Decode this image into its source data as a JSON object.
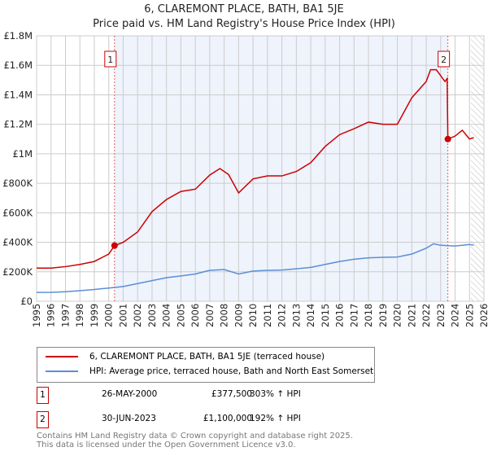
{
  "chart_data": {
    "type": "line",
    "title": "6, CLAREMONT PLACE, BATH, BA1 5JE",
    "subtitle": "Price paid vs. HM Land Registry's House Price Index (HPI)",
    "xlim": [
      1995,
      2026
    ],
    "ylim": [
      0,
      1800000
    ],
    "x_ticks": [
      "1995",
      "1996",
      "1997",
      "1998",
      "1999",
      "2000",
      "2001",
      "2002",
      "2003",
      "2004",
      "2005",
      "2006",
      "2007",
      "2008",
      "2009",
      "2010",
      "2011",
      "2012",
      "2013",
      "2014",
      "2015",
      "2016",
      "2017",
      "2018",
      "2019",
      "2020",
      "2021",
      "2022",
      "2023",
      "2024",
      "2025",
      "2026"
    ],
    "y_ticks": [
      {
        "v": 0,
        "l": "£0"
      },
      {
        "v": 200000,
        "l": "£200K"
      },
      {
        "v": 400000,
        "l": "£400K"
      },
      {
        "v": 600000,
        "l": "£600K"
      },
      {
        "v": 800000,
        "l": "£800K"
      },
      {
        "v": 1000000,
        "l": "£1M"
      },
      {
        "v": 1200000,
        "l": "£1.2M"
      },
      {
        "v": 1400000,
        "l": "£1.4M"
      },
      {
        "v": 1600000,
        "l": "£1.6M"
      },
      {
        "v": 1800000,
        "l": "£1.8M"
      }
    ],
    "grid": true,
    "series": [
      {
        "name": "6, CLAREMONT PLACE, BATH, BA1 5JE (terraced house)",
        "color": "#cc0000",
        "x": [
          1995,
          1996,
          1997,
          1998,
          1999,
          2000,
          2000.4,
          2001,
          2002,
          2003,
          2004,
          2005,
          2006,
          2007,
          2007.7,
          2008.3,
          2009,
          2010,
          2011,
          2012,
          2013,
          2014,
          2015,
          2016,
          2017,
          2018,
          2019,
          2020,
          2021,
          2022,
          2022.3,
          2022.7,
          2023.3,
          2023.45,
          2023.5,
          2024,
          2024.5,
          2025,
          2025.3
        ],
        "y": [
          225000,
          225000,
          235000,
          250000,
          270000,
          320000,
          377500,
          400000,
          470000,
          608000,
          690000,
          745000,
          760000,
          856000,
          900000,
          860000,
          735000,
          830000,
          850000,
          850000,
          880000,
          940000,
          1050000,
          1130000,
          1170000,
          1215000,
          1200000,
          1200000,
          1380000,
          1490000,
          1570000,
          1570000,
          1490000,
          1510000,
          1100000,
          1120000,
          1160000,
          1100000,
          1110000
        ]
      },
      {
        "name": "HPI: Average price, terraced house, Bath and North East Somerset",
        "color": "#5b8fd4",
        "x": [
          1995,
          1996,
          1997,
          1998,
          1999,
          2000,
          2000.4,
          2001,
          2002,
          2003,
          2004,
          2005,
          2006,
          2007,
          2008,
          2009,
          2010,
          2011,
          2012,
          2013,
          2014,
          2015,
          2016,
          2017,
          2018,
          2019,
          2020,
          2021,
          2022,
          2022.5,
          2023,
          2023.5,
          2024,
          2025,
          2025.3
        ],
        "y": [
          60000,
          61000,
          65000,
          72000,
          80000,
          90000,
          94000,
          100000,
          120000,
          140000,
          160000,
          172000,
          185000,
          210000,
          215000,
          185000,
          205000,
          210000,
          212000,
          220000,
          230000,
          250000,
          270000,
          285000,
          295000,
          298000,
          300000,
          320000,
          360000,
          390000,
          380000,
          377000,
          375000,
          385000,
          380000
        ]
      }
    ],
    "annotations": [
      {
        "label": "1",
        "x": 2000.4,
        "y": 377500
      },
      {
        "label": "2",
        "x": 2023.5,
        "y": 1100000
      }
    ],
    "shaded_range": [
      2000.4,
      2023.5
    ],
    "hatched_from": 2025.1,
    "legend_placement": "below"
  },
  "legend": [
    "6, CLAREMONT PLACE, BATH, BA1 5JE (terraced house)",
    "HPI: Average price, terraced house, Bath and North East Somerset"
  ],
  "transactions": [
    {
      "n": "1",
      "date": "26-MAY-2000",
      "price": "£377,500",
      "hpi": "303% ↑ HPI"
    },
    {
      "n": "2",
      "date": "30-JUN-2023",
      "price": "£1,100,000",
      "hpi": "192% ↑ HPI"
    }
  ],
  "footer": [
    "Contains HM Land Registry data © Crown copyright and database right 2025.",
    "This data is licensed under the Open Government Licence v3.0."
  ]
}
